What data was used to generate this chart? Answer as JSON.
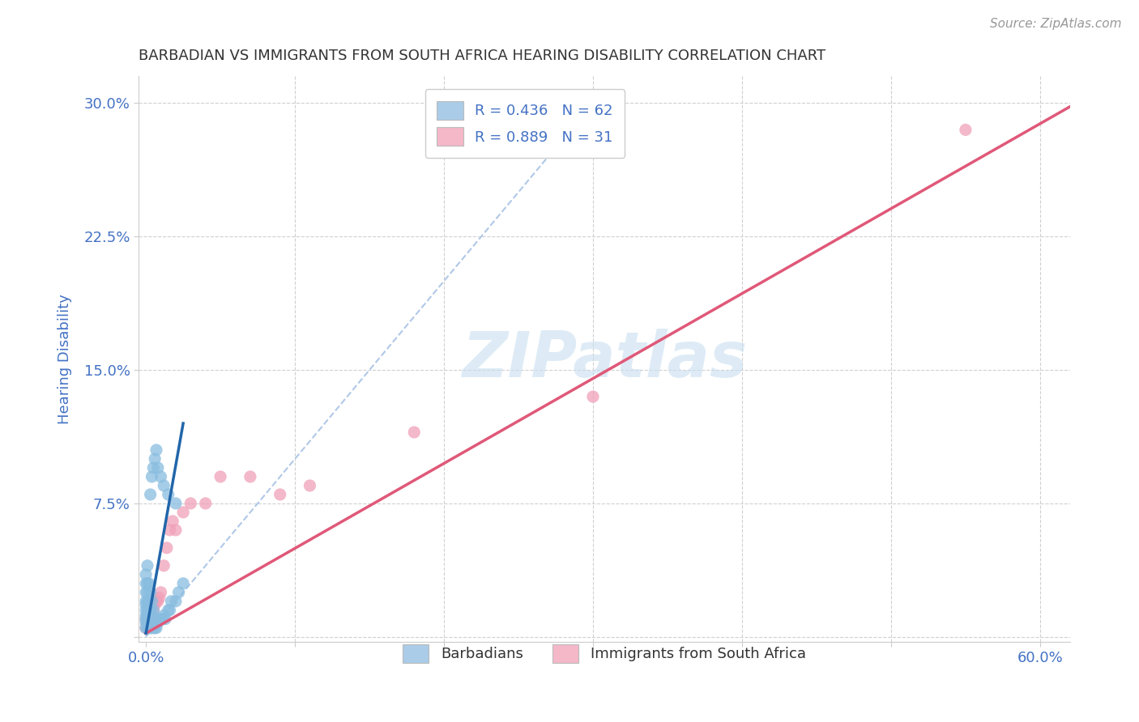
{
  "title": "BARBADIAN VS IMMIGRANTS FROM SOUTH AFRICA HEARING DISABILITY CORRELATION CHART",
  "source": "Source: ZipAtlas.com",
  "ylabel": "Hearing Disability",
  "x_ticks": [
    0.0,
    0.1,
    0.2,
    0.3,
    0.4,
    0.5,
    0.6
  ],
  "x_tick_labels": [
    "0.0%",
    "",
    "",
    "",
    "",
    "",
    "60.0%"
  ],
  "y_ticks": [
    0.0,
    0.075,
    0.15,
    0.225,
    0.3
  ],
  "y_tick_labels": [
    "",
    "7.5%",
    "15.0%",
    "22.5%",
    "30.0%"
  ],
  "xlim": [
    -0.005,
    0.62
  ],
  "ylim": [
    -0.003,
    0.315
  ],
  "blue_scatter_x": [
    0.0,
    0.0,
    0.0,
    0.0,
    0.0,
    0.0,
    0.0,
    0.0,
    0.0,
    0.0,
    0.001,
    0.001,
    0.001,
    0.001,
    0.001,
    0.001,
    0.001,
    0.001,
    0.002,
    0.002,
    0.002,
    0.002,
    0.002,
    0.002,
    0.003,
    0.003,
    0.003,
    0.003,
    0.003,
    0.004,
    0.004,
    0.004,
    0.004,
    0.005,
    0.005,
    0.005,
    0.006,
    0.006,
    0.007,
    0.007,
    0.008,
    0.009,
    0.01,
    0.011,
    0.012,
    0.013,
    0.015,
    0.016,
    0.017,
    0.02,
    0.022,
    0.025,
    0.003,
    0.004,
    0.005,
    0.006,
    0.007,
    0.008,
    0.01,
    0.012,
    0.015,
    0.02
  ],
  "blue_scatter_y": [
    0.005,
    0.008,
    0.01,
    0.012,
    0.015,
    0.018,
    0.02,
    0.025,
    0.03,
    0.035,
    0.005,
    0.008,
    0.01,
    0.015,
    0.02,
    0.025,
    0.03,
    0.04,
    0.005,
    0.008,
    0.01,
    0.015,
    0.02,
    0.03,
    0.005,
    0.008,
    0.01,
    0.015,
    0.025,
    0.005,
    0.008,
    0.012,
    0.02,
    0.005,
    0.01,
    0.015,
    0.005,
    0.01,
    0.005,
    0.01,
    0.008,
    0.01,
    0.01,
    0.01,
    0.012,
    0.01,
    0.015,
    0.015,
    0.02,
    0.02,
    0.025,
    0.03,
    0.08,
    0.09,
    0.095,
    0.1,
    0.105,
    0.095,
    0.09,
    0.085,
    0.08,
    0.075
  ],
  "blue_line_x": [
    0.0,
    0.025
  ],
  "blue_line_y": [
    0.002,
    0.12
  ],
  "pink_scatter_x": [
    0.0,
    0.0,
    0.001,
    0.001,
    0.002,
    0.002,
    0.003,
    0.003,
    0.004,
    0.004,
    0.005,
    0.006,
    0.007,
    0.008,
    0.009,
    0.01,
    0.012,
    0.014,
    0.016,
    0.018,
    0.02,
    0.025,
    0.03,
    0.04,
    0.05,
    0.07,
    0.09,
    0.11,
    0.18,
    0.3,
    0.55
  ],
  "pink_scatter_y": [
    0.005,
    0.01,
    0.008,
    0.012,
    0.01,
    0.015,
    0.01,
    0.015,
    0.012,
    0.018,
    0.015,
    0.018,
    0.02,
    0.02,
    0.022,
    0.025,
    0.04,
    0.05,
    0.06,
    0.065,
    0.06,
    0.07,
    0.075,
    0.075,
    0.09,
    0.09,
    0.08,
    0.085,
    0.115,
    0.135,
    0.285
  ],
  "pink_line_x": [
    0.0,
    0.62
  ],
  "pink_line_y": [
    0.002,
    0.298
  ],
  "blue_color": "#89bde0",
  "blue_line_color": "#2266aa",
  "pink_color": "#f0a0b8",
  "pink_line_color": "#e05878",
  "blue_legend_color": "#aacce8",
  "pink_legend_color": "#f4b8c8",
  "ref_line_color": "#b0c8e8",
  "watermark_color": "#c8dff0",
  "background_color": "#ffffff",
  "grid_color": "#d0d0d0",
  "title_color": "#333333",
  "tick_label_color": "#4472c4",
  "series_labels": [
    "Barbadians",
    "Immigrants from South Africa"
  ],
  "R_values": [
    0.436,
    0.889
  ],
  "N_values": [
    62,
    31
  ]
}
